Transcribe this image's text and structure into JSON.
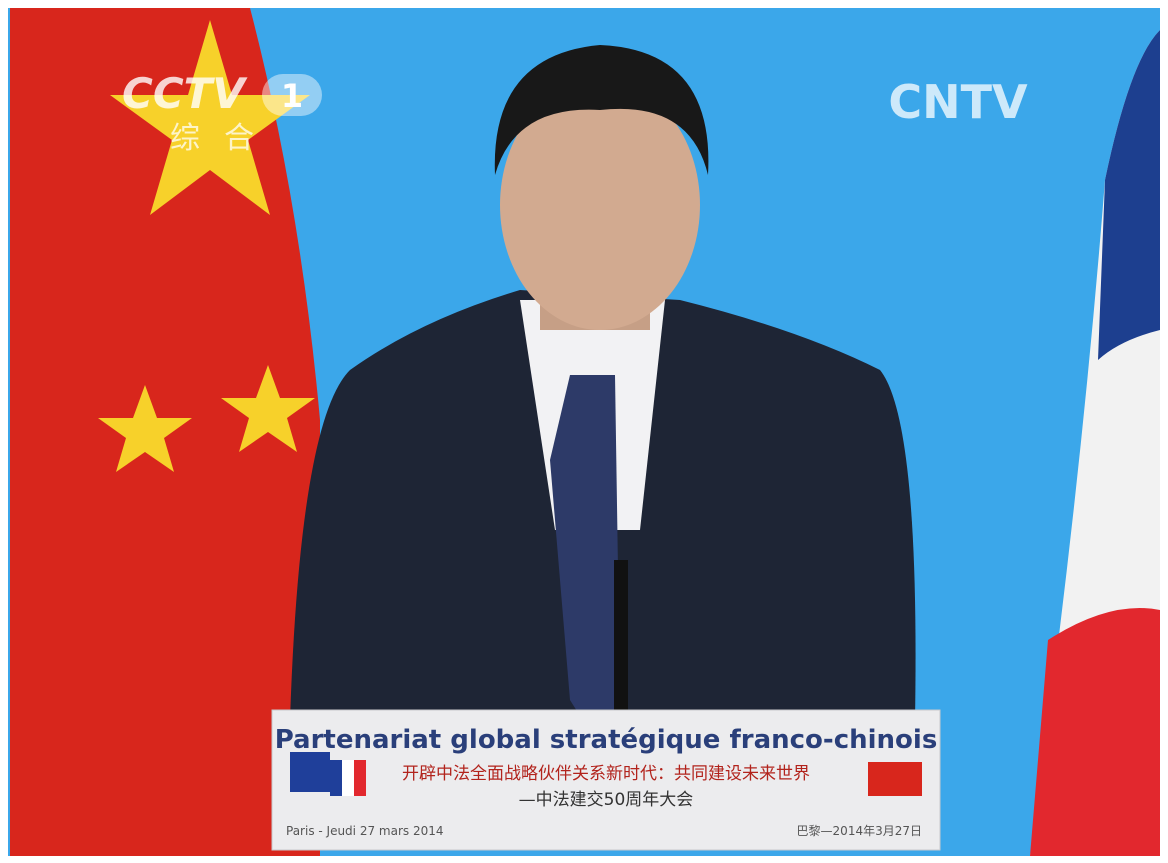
{
  "logo_left": {
    "brand": "CCTV",
    "channel": "1",
    "subtitle": "综合"
  },
  "logo_right": "CNTV",
  "podium": {
    "title": "Partenariat global stratégique franco-chinois",
    "line1": "开辟中法全面战略伙伴关系新时代：共同建设未来世界",
    "line2": "—中法建交50周年大会",
    "date_fr": "Paris - Jeudi 27 mars 2014",
    "date_cn": "巴黎—2014年3月27日"
  }
}
